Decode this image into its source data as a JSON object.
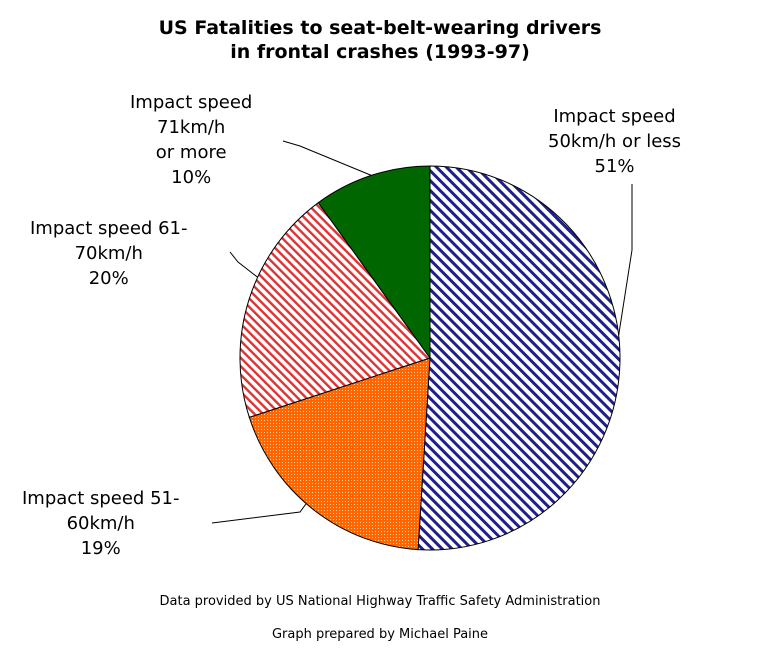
{
  "chart_data": {
    "type": "pie",
    "title": [
      "US Fatalities to seat-belt-wearing drivers",
      "in frontal crashes (1993-97)"
    ],
    "slices": [
      {
        "label": [
          "Impact speed",
          "50km/h or less"
        ],
        "percent_label": "51%",
        "value": 51,
        "color": "#1f1f8c",
        "fill": "diagonal-hatch"
      },
      {
        "label": [
          "Impact speed 51-",
          "60km/h"
        ],
        "percent_label": "19%",
        "value": 19,
        "color": "#ff6600",
        "fill": "dotted"
      },
      {
        "label": [
          "Impact speed 61-",
          "70km/h"
        ],
        "percent_label": "20%",
        "value": 20,
        "color": "#dd3333",
        "fill": "diagonal-hatch"
      },
      {
        "label": [
          "Impact speed",
          "71km/h",
          "or more"
        ],
        "percent_label": "10%",
        "value": 10,
        "color": "#006600",
        "fill": "solid"
      }
    ],
    "start_angle": "12 o'clock",
    "direction": "clockwise"
  },
  "credits": {
    "data_source": "Data provided by US National Highway Traffic Safety Administration",
    "prepared_by": "Graph prepared by Michael Paine"
  }
}
